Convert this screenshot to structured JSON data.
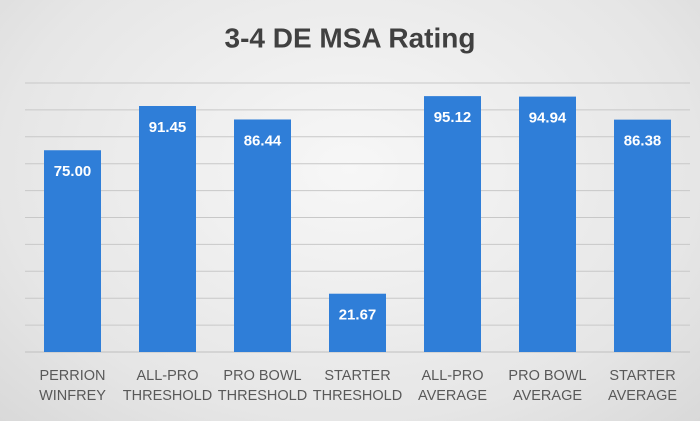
{
  "chart_data": {
    "type": "bar",
    "title": "3-4 DE MSA Rating",
    "categories": [
      "PERRION WINFREY",
      "ALL-PRO THRESHOLD",
      "PRO BOWL THRESHOLD",
      "STARTER THRESHOLD",
      "ALL-PRO AVERAGE",
      "PRO BOWL AVERAGE",
      "STARTER AVERAGE"
    ],
    "values": [
      75.0,
      91.45,
      86.44,
      21.67,
      95.12,
      94.94,
      86.38
    ],
    "value_labels": [
      "75.00",
      "91.45",
      "86.44",
      "21.67",
      "95.12",
      "94.94",
      "86.38"
    ],
    "color": "#2f7ed8",
    "ylim": [
      0,
      100
    ],
    "yticks": [
      0,
      10,
      20,
      30,
      40,
      50,
      60,
      70,
      80,
      90,
      100
    ],
    "grid": true
  }
}
